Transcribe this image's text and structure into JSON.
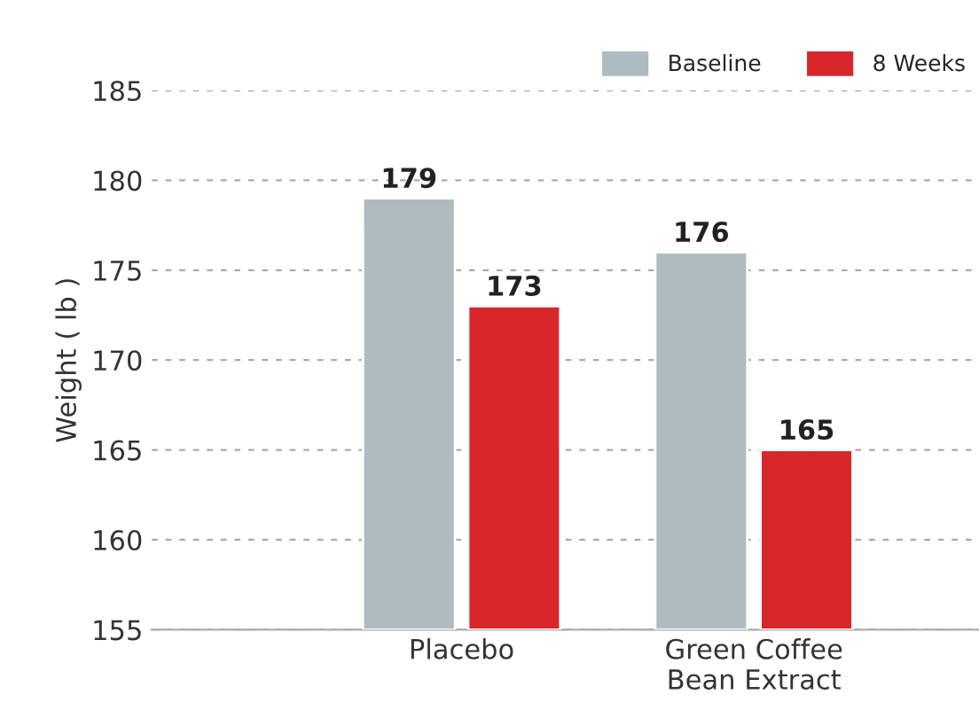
{
  "chart_data": {
    "type": "bar",
    "ylabel": "Weight ( lb )",
    "categories": [
      "Placebo",
      "Green Coffee\nBean Extract"
    ],
    "series": [
      {
        "name": "Baseline",
        "color": "#aebbc0",
        "values": [
          179,
          176
        ]
      },
      {
        "name": "8 Weeks",
        "color": "#d8262b",
        "values": [
          173,
          165
        ]
      }
    ],
    "ylim": [
      155,
      185
    ],
    "yticks": [
      155,
      160,
      165,
      170,
      175,
      180,
      185
    ],
    "grid": "y",
    "legend": "top right",
    "data_labels": true
  }
}
